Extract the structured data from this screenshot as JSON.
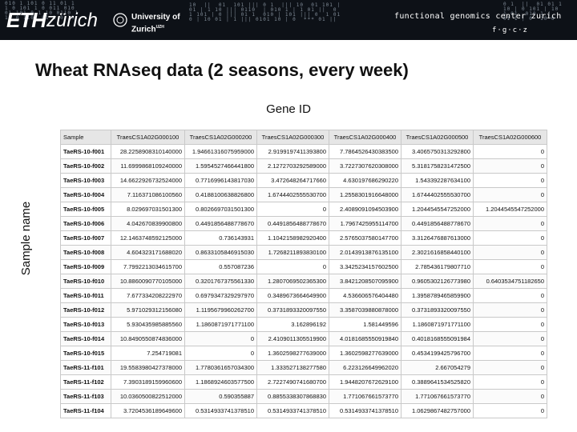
{
  "header": {
    "logo_eth": "ETH",
    "logo_zurich": "zürich",
    "uni_line1": "University of",
    "uni_line2": "Zurich",
    "uni_suffix": "UZH",
    "fgc_title": "functional genomics center zurich",
    "fgc_abbr": "f·g·c·z",
    "binary_left": "010 1 101 0 11 01 1\n1 0 101 1 0 011 010\n01 101 0 1 10 0110 1\n10 0 1101 01 1 0 10",
    "binary_mid": "10  ||  01  101 ||| 0 1  ||| 10  01 101 |\n01 | 1 10 ||| 0110  | 010 1 | 1 01 ||  0\n1 101 | 0 ||| 01 1  010 | 101 ||| 0  1 01\n0 | 10 01 | 1 ||| 0101 10 | 0  *** 01 ||",
    "binary_right": "0 1  ||  01 01 1\n10 | 0 101 | 10\n1 01  010 1 |\n01 1 | 0  10 0"
  },
  "slide": {
    "title": "Wheat RNAseq data (2 seasons, every week)",
    "gene_axis_label": "Gene ID",
    "sample_axis_label": "Sample name"
  },
  "table": {
    "columns": [
      "Sample",
      "TraesCS1A02G000100",
      "TraesCS1A02G000200",
      "TraesCS1A02G000300",
      "TraesCS1A02G000400",
      "TraesCS1A02G000500",
      "TraesCS1A02G000600"
    ],
    "rows": [
      [
        "TaeRS-10-f001",
        "28.2258908310140000",
        "1.94661316075959000",
        "2.9199197411393800",
        "7.7864526430383500",
        "3.4065750313292800",
        "0"
      ],
      [
        "TaeRS-10-f002",
        "11.6999868109240000",
        "1.5954527466441800",
        "2.1272703292589000",
        "3.7227307620308000",
        "5.3181758231472500",
        "0"
      ],
      [
        "TaeRS-10-f003",
        "14.6622926732524000",
        "0.7716996143817030",
        "3.472648264717660",
        "4.630197686290220",
        "1.543392287634100",
        "0"
      ],
      [
        "TaeRS-10-f004",
        "7.116371086100560",
        "0.4188100638826800",
        "1.6744402555530700",
        "1.2558301916648000",
        "1.6744402555530700",
        "0"
      ],
      [
        "TaeRS-10-f005",
        "8.029697031501300",
        "0.8026697031501300",
        "0",
        "2.4089091094503900",
        "1.2044545547252000",
        "1.2044545547252000"
      ],
      [
        "TaeRS-10-f006",
        "4.042670839900800",
        "0.4491856488778670",
        "0.4491856488778670",
        "1.7967425955114700",
        "0.4491856488778670",
        "0"
      ],
      [
        "TaeRS-10-f007",
        "12.1463748592125000",
        "0.736143931",
        "1.1042158982920400",
        "2.5765037580147700",
        "3.3126476887613000",
        "0"
      ],
      [
        "TaeRS-10-f008",
        "4.604323171688020",
        "0.8633105846915030",
        "1.7268211893830100",
        "2.0143913876135100",
        "2.3021616858440100",
        "0"
      ],
      [
        "TaeRS-10-f009",
        "7.7992213034615700",
        "0.557087236",
        "0",
        "3.3425234157602500",
        "2.785436179807710",
        "0"
      ],
      [
        "TaeRS-10-f010",
        "10.8860090770105000",
        "0.3201767375561330",
        "1.2807069502365300",
        "3.8421208507095900",
        "0.9605302126773980",
        "0.6403534751182650"
      ],
      [
        "TaeRS-10-f011",
        "7.677334208222970",
        "0.6979347329297970",
        "0.3489673664649900",
        "4.536606576404480",
        "1.3958789465859900",
        "0"
      ],
      [
        "TaeRS-10-f012",
        "5.971029312156080",
        "1.1195679960262700",
        "0.3731893320097550",
        "3.3587039880878000",
        "0.3731893320097550",
        "0"
      ],
      [
        "TaeRS-10-f013",
        "5.930435985885560",
        "1.1860871971771100",
        "3.162896192",
        "1.581449596",
        "1.1860871971771100",
        "0"
      ],
      [
        "TaeRS-10-f014",
        "10.8490550874836000",
        "0",
        "2.4109011305519900",
        "4.0181685550919840",
        "0.4018168555091984",
        "0"
      ],
      [
        "TaeRS-10-f015",
        "7.254719081",
        "0",
        "1.3602598277639000",
        "1.3602598277639000",
        "0.4534199425796700",
        "0"
      ],
      [
        "TaeRS-11-f101",
        "19.5583980427378000",
        "1.7780361657034300",
        "1.333527138277580",
        "6.223126649962020",
        "2.667054279",
        "0"
      ],
      [
        "TaeRS-11-f102",
        "7.3903189159960600",
        "1.1868924603577500",
        "2.7227490741680700",
        "1.9448207672629100",
        "0.3889641534525820",
        "0"
      ],
      [
        "TaeRS-11-f103",
        "10.0360500822512000",
        "0.590355887",
        "0.8855338307868830",
        "1.771067661573770",
        "1.771067661573770",
        "0"
      ],
      [
        "TaeRS-11-f104",
        "3.7204536189649600",
        "0.5314933741378510",
        "0.5314933741378510",
        "0.5314933741378510",
        "1.0629867482757000",
        "0"
      ]
    ]
  }
}
